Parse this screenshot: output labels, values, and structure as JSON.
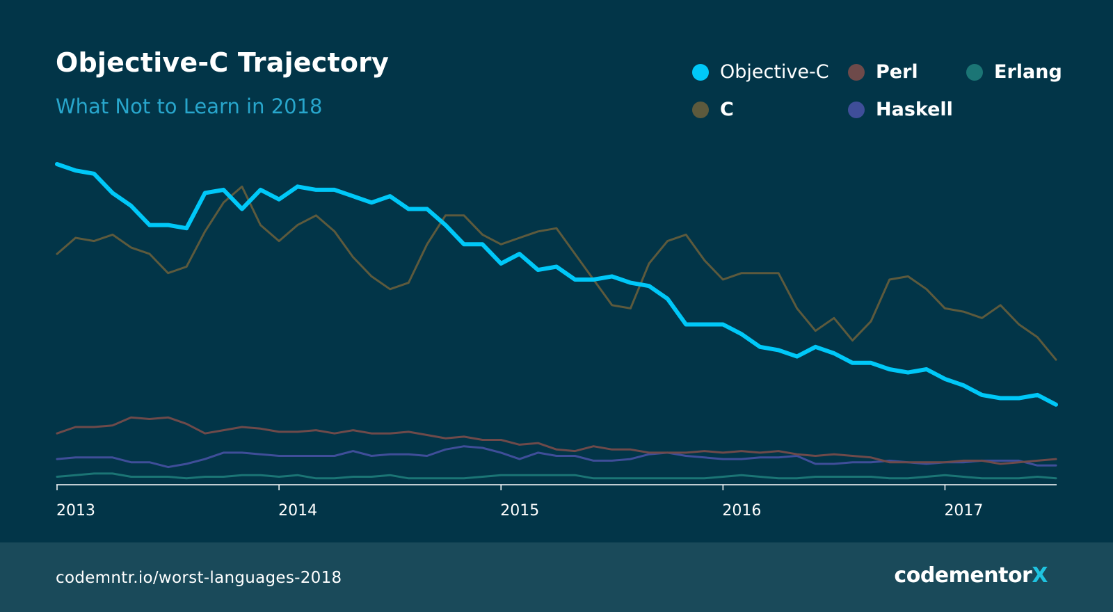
{
  "header": {
    "title": "Objective-C Trajectory",
    "subtitle": "What Not to Learn in 2018"
  },
  "footer": {
    "url": "codemntr.io/worst-languages-2018",
    "brand_main": "codementor",
    "brand_accent": "X"
  },
  "colors": {
    "background": "#023548",
    "footer_bg": "#1a4a5a",
    "subtitle": "#28a6cc",
    "brand_accent": "#1fc3e0"
  },
  "chart_data": {
    "type": "line",
    "title": "Objective-C Trajectory",
    "subtitle": "What Not to Learn in 2018",
    "xlabel": "",
    "ylabel": "",
    "x_ticks": [
      "2013",
      "2014",
      "2015",
      "2016",
      "2017"
    ],
    "x_start": "2013-01",
    "x_end": "2017-06",
    "ylim": [
      0,
      100
    ],
    "grid": false,
    "legend_position": "top-right",
    "series": [
      {
        "name": "Objective-C",
        "color": "#00c8f8",
        "values": [
          100,
          98,
          97,
          91,
          87,
          81,
          81,
          80,
          91,
          92,
          86,
          92,
          89,
          93,
          92,
          92,
          90,
          88,
          90,
          86,
          86,
          81,
          75,
          75,
          69,
          72,
          67,
          68,
          64,
          64,
          65,
          63,
          62,
          58,
          50,
          50,
          50,
          47,
          43,
          42,
          40,
          43,
          41,
          38,
          38,
          36,
          35,
          36,
          33,
          31,
          28,
          27,
          27,
          28,
          25
        ]
      },
      {
        "name": "C",
        "color": "#5d5a3d",
        "values": [
          72,
          77,
          76,
          78,
          74,
          72,
          66,
          68,
          79,
          88,
          93,
          81,
          76,
          81,
          84,
          79,
          71,
          65,
          61,
          63,
          75,
          84,
          84,
          78,
          75,
          77,
          79,
          80,
          72,
          64,
          56,
          55,
          69,
          76,
          78,
          70,
          64,
          66,
          66,
          66,
          55,
          48,
          52,
          45,
          51,
          64,
          65,
          61,
          55,
          54,
          52,
          56,
          50,
          46,
          39
        ]
      },
      {
        "name": "Perl",
        "color": "#6e4a4a",
        "values": [
          16,
          18,
          18,
          18.5,
          21,
          20.5,
          21,
          19,
          16,
          17,
          18,
          17.5,
          16.5,
          16.5,
          17,
          16,
          17,
          16,
          16,
          16.5,
          15.5,
          14.5,
          15,
          14,
          14,
          12.5,
          13,
          11,
          10.5,
          12,
          11,
          11,
          10,
          10,
          10,
          10.5,
          10,
          10.5,
          10,
          10.5,
          9.5,
          9,
          9.5,
          9,
          8.5,
          7,
          7,
          7,
          7,
          7.5,
          7.5,
          6.5,
          7,
          7.5,
          8
        ]
      },
      {
        "name": "Haskell",
        "color": "#3f4e99",
        "values": [
          8,
          8.5,
          8.5,
          8.5,
          7,
          7,
          5.5,
          6.5,
          8,
          10,
          10,
          9.5,
          9,
          9,
          9,
          9,
          10.5,
          9,
          9.5,
          9.5,
          9,
          11,
          12,
          11.5,
          10,
          8,
          10,
          9,
          9,
          7.5,
          7.5,
          8,
          9.5,
          10,
          9,
          8.5,
          8,
          8,
          8.5,
          8.5,
          9,
          6.5,
          6.5,
          7,
          7,
          7.5,
          7,
          6.5,
          7,
          7,
          7.5,
          7.5,
          7.5,
          6,
          6
        ]
      },
      {
        "name": "Erlang",
        "color": "#1b7575",
        "values": [
          2.5,
          3,
          3.5,
          3.5,
          2.5,
          2.5,
          2.5,
          2,
          2.5,
          2.5,
          3,
          3,
          2.5,
          3,
          2,
          2,
          2.5,
          2.5,
          3,
          2,
          2,
          2,
          2,
          2.5,
          3,
          3,
          3,
          3,
          3,
          2,
          2,
          2,
          2,
          2,
          2,
          2,
          2.5,
          3,
          2.5,
          2,
          2,
          2.5,
          2.5,
          2.5,
          2.5,
          2,
          2,
          2.5,
          3,
          2.5,
          2,
          2,
          2,
          2.5,
          2
        ]
      }
    ]
  }
}
